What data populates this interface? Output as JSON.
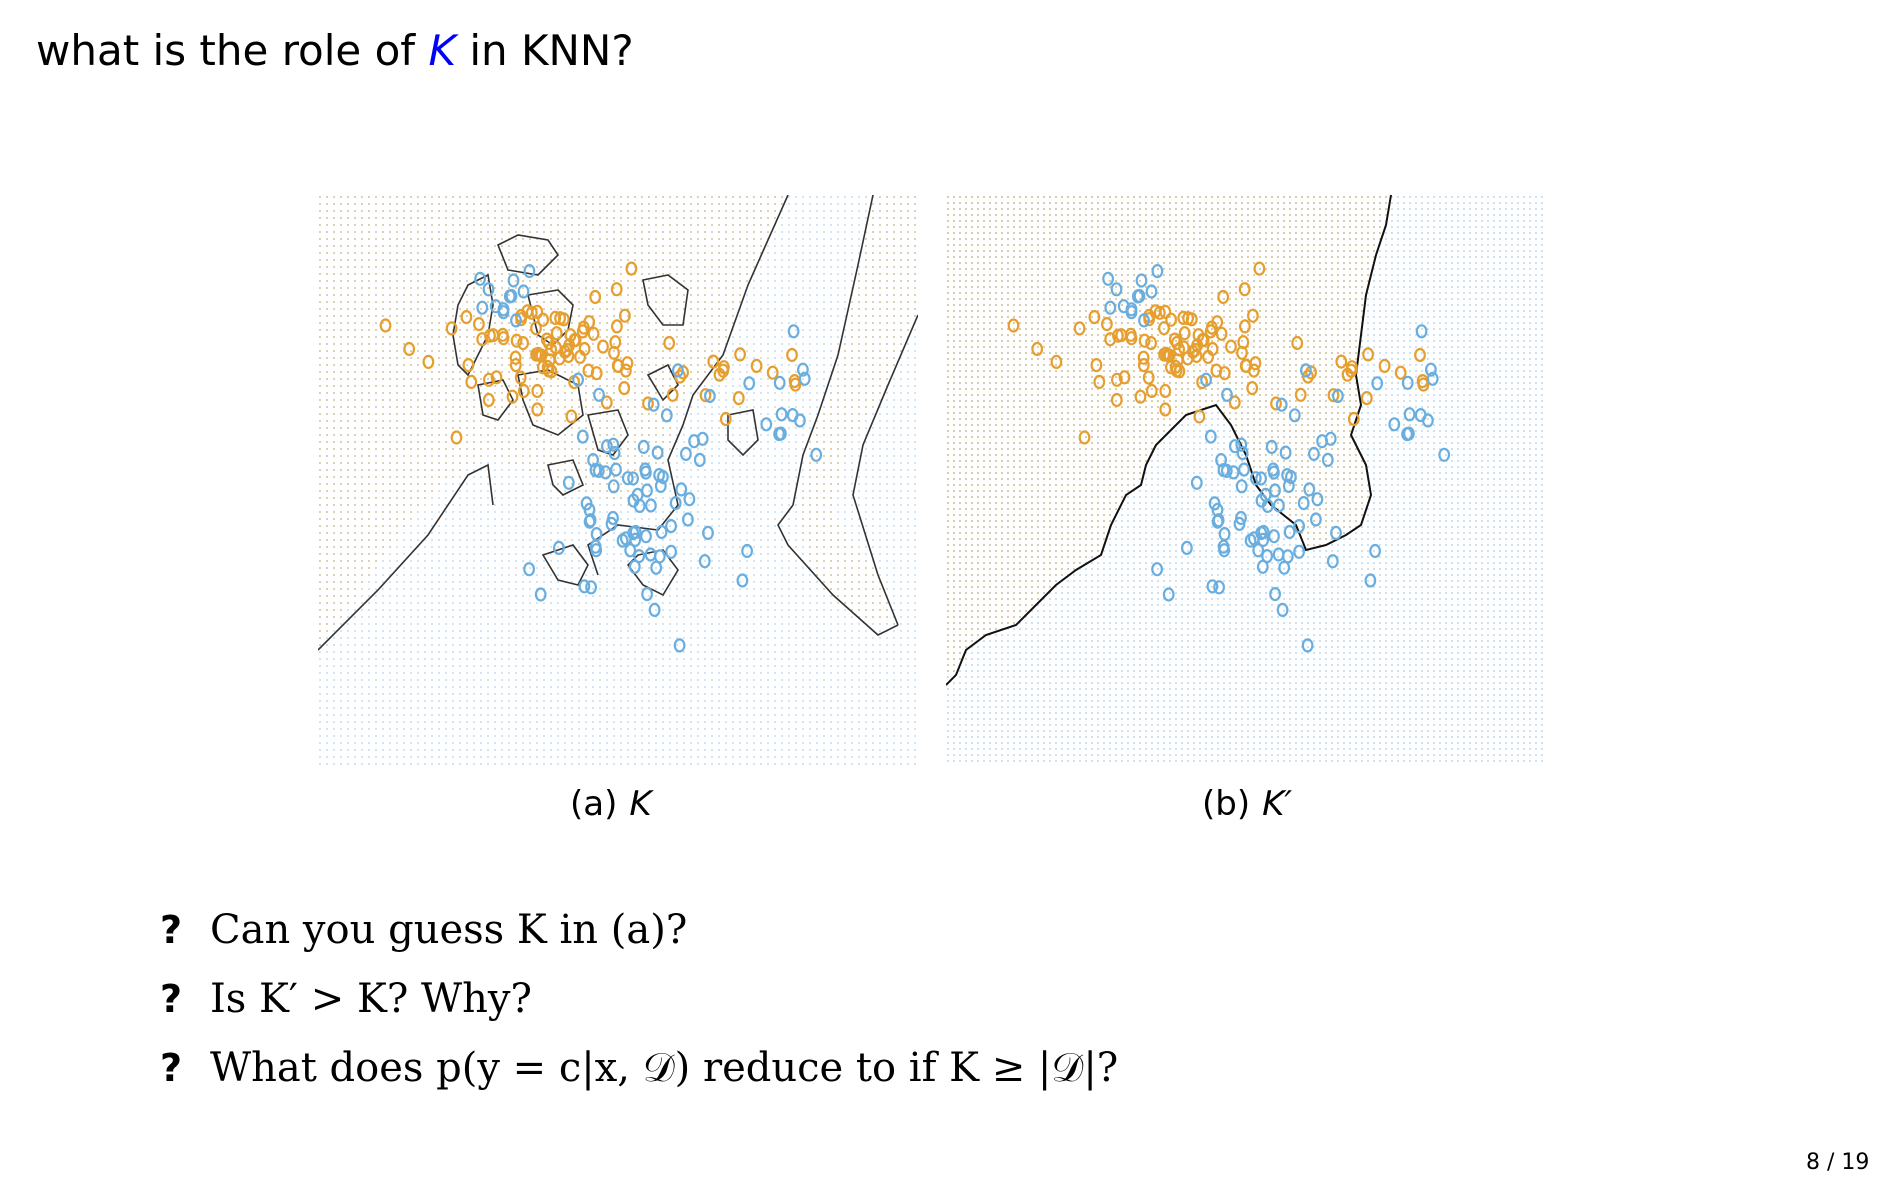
{
  "slide": {
    "title_pre": "what is the role of ",
    "title_k": "K",
    "title_post": " in KNN?"
  },
  "figures": [
    {
      "label": "(a)",
      "symbol": "K"
    },
    {
      "label": "(b)",
      "symbol": "K′"
    }
  ],
  "questions": [
    {
      "text": "Can you guess K in (a)?"
    },
    {
      "text": "Is K′ > K? Why?"
    },
    {
      "text": "What does p(y = c|x, 𝒟) reduce to if K ≥ |𝒟|?"
    }
  ],
  "question_mark": "?",
  "page_number": "8 / 19",
  "colors": {
    "orange_class": "#e69f2f",
    "blue_class": "#6aaedf",
    "title_k": "#0000ff"
  }
}
